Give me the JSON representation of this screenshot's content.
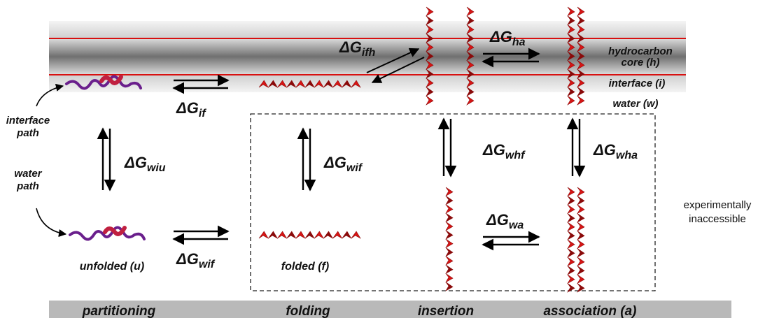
{
  "colors": {
    "membrane_dark": "#6e6e6e",
    "membrane_light": "#d8d8d8",
    "interface_line": "#d81010",
    "helix": "#d81414",
    "helix_shadow": "#8a0a0a",
    "unfolded_a": "#6a1f8c",
    "unfolded_b": "#c02040",
    "bottom_bar": "#b9b9b9"
  },
  "regions": {
    "hydrocarbon_core": "hydrocarbon core (h)",
    "hydrocarbon_core_line1": "hydrocarbon",
    "hydrocarbon_core_line2": "core (h)",
    "interface": "interface (i)",
    "water": "water (w)"
  },
  "paths": {
    "interface_path_line1": "interface",
    "interface_path_line2": "path",
    "water_path_line1": "water",
    "water_path_line2": "path"
  },
  "states": {
    "unfolded": "unfolded (u)",
    "folded": "folded (f)"
  },
  "energies": {
    "if": {
      "main": "ΔG",
      "sub": "if"
    },
    "ifh": {
      "main": "ΔG",
      "sub": "ifh"
    },
    "ha": {
      "main": "ΔG",
      "sub": "ha"
    },
    "wiu": {
      "main": "ΔG",
      "sub": "wiu"
    },
    "wif_vertical": {
      "main": "ΔG",
      "sub": "wif"
    },
    "whf": {
      "main": "ΔG",
      "sub": "whf"
    },
    "wha": {
      "main": "ΔG",
      "sub": "wha"
    },
    "wa": {
      "main": "ΔG",
      "sub": "wa"
    },
    "wif_bottom": {
      "main": "ΔG",
      "sub": "wif"
    }
  },
  "note": {
    "line1": "experimentally",
    "line2": "inaccessible"
  },
  "stages": {
    "partitioning": "partitioning",
    "folding": "folding",
    "insertion": "insertion",
    "association": "association (a)"
  }
}
